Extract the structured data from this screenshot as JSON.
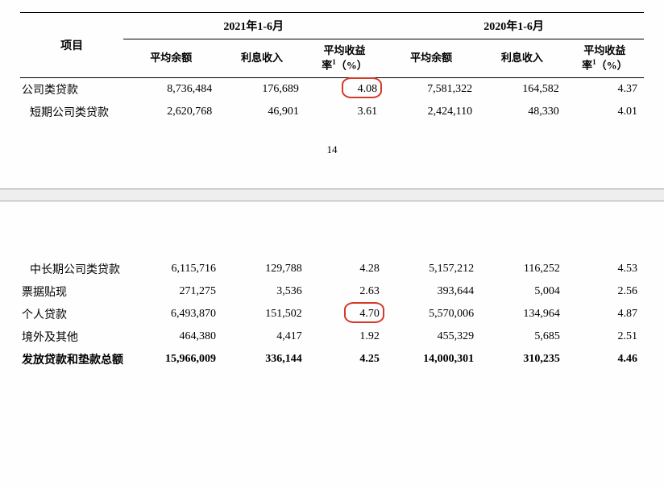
{
  "header": {
    "item": "项目",
    "period2021": "2021年1-6月",
    "period2020": "2020年1-6月",
    "avgBalance": "平均余额",
    "interestIncome": "利息收入",
    "avgYield": "平均收益率¹（%）"
  },
  "pageNumber": "14",
  "tableTop": {
    "rows": [
      {
        "label": "公司类贷款",
        "ab21": "8,736,484",
        "ii21": "176,689",
        "yr21": "4.08",
        "ab20": "7,581,322",
        "ii20": "164,582",
        "yr20": "4.37",
        "circled": true
      },
      {
        "label": "短期公司类贷款",
        "indent": true,
        "ab21": "2,620,768",
        "ii21": "46,901",
        "yr21": "3.61",
        "ab20": "2,424,110",
        "ii20": "48,330",
        "yr20": "4.01"
      }
    ]
  },
  "tableBottom": {
    "rows": [
      {
        "label": "中长期公司类贷款",
        "indent": true,
        "ab21": "6,115,716",
        "ii21": "129,788",
        "yr21": "4.28",
        "ab20": "5,157,212",
        "ii20": "116,252",
        "yr20": "4.53"
      },
      {
        "label": "票据贴现",
        "ab21": "271,275",
        "ii21": "3,536",
        "yr21": "2.63",
        "ab20": "393,644",
        "ii20": "5,004",
        "yr20": "2.56"
      },
      {
        "label": "个人贷款",
        "ab21": "6,493,870",
        "ii21": "151,502",
        "yr21": "4.70",
        "ab20": "5,570,006",
        "ii20": "134,964",
        "yr20": "4.87",
        "circled": true
      },
      {
        "label": "境外及其他",
        "ab21": "464,380",
        "ii21": "4,417",
        "yr21": "1.92",
        "ab20": "455,329",
        "ii20": "5,685",
        "yr20": "2.51"
      },
      {
        "label": "发放贷款和垫款总额",
        "bold": true,
        "ab21": "15,966,009",
        "ii21": "336,144",
        "yr21": "4.25",
        "ab20": "14,000,301",
        "ii20": "310,235",
        "yr20": "4.46"
      }
    ]
  },
  "styling": {
    "circleColor": "#d43a2a",
    "textColor": "#000000",
    "dividerBg": "#eeeeee",
    "fontSize": 14
  }
}
